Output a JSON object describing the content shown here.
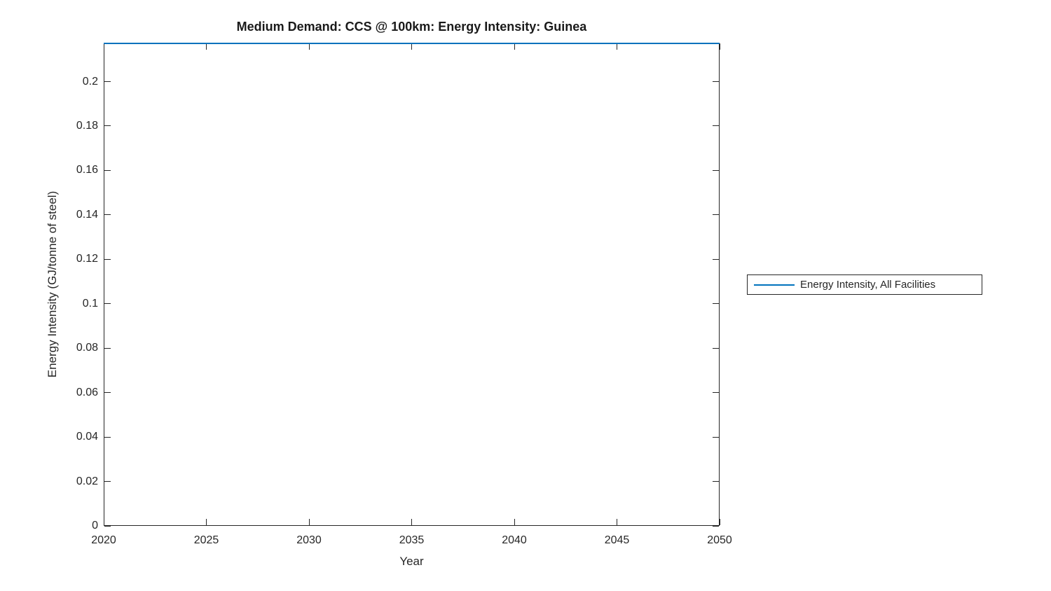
{
  "figure": {
    "title": "Medium Demand: CCS @ 100km: Energy Intensity: Guinea",
    "xlabel": "Year",
    "ylabel": "Energy Intensity (GJ/tonne of steel)",
    "background_color": "#ffffff",
    "axes_color": "#262626",
    "text_color": "#262626"
  },
  "legend": {
    "position": "east-outside",
    "border_color": "#262626",
    "entries": [
      {
        "label": "Energy Intensity, All Facilities",
        "color": "#0072bd",
        "marker": "line"
      }
    ]
  },
  "chart_data": {
    "type": "line",
    "title": "Medium Demand: CCS @ 100km: Energy Intensity: Guinea",
    "xlabel": "Year",
    "ylabel": "Energy Intensity (GJ/tonne of steel)",
    "xlim": [
      2020,
      2050
    ],
    "ylim": [
      0,
      0.2175
    ],
    "x_ticks": [
      2020,
      2025,
      2030,
      2035,
      2040,
      2045,
      2050
    ],
    "x_tick_labels": [
      "2020",
      "2025",
      "2030",
      "2035",
      "2040",
      "2045",
      "2050"
    ],
    "y_ticks": [
      0,
      0.02,
      0.04,
      0.06,
      0.08,
      0.1,
      0.12,
      0.14,
      0.16,
      0.18,
      0.2
    ],
    "y_tick_labels": [
      "0",
      "0.02",
      "0.04",
      "0.06",
      "0.08",
      "0.1",
      "0.12",
      "0.14",
      "0.16",
      "0.18",
      "0.2"
    ],
    "grid": false,
    "legend_position": "east-outside",
    "series": [
      {
        "name": "Energy Intensity, All Facilities",
        "color": "#0072bd",
        "x": [
          2020,
          2050
        ],
        "y": [
          0.2175,
          0.2175
        ],
        "note": "constant horizontal line rendered at the top edge of the axes; value ~0.2175 estimated from pixel position"
      }
    ]
  }
}
